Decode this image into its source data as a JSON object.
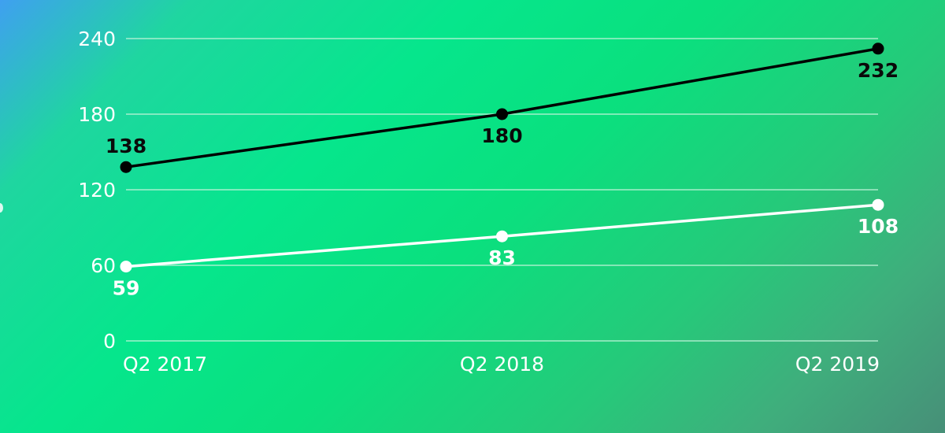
{
  "colors": {
    "background_start": "#3fa0f0",
    "background_mid": "#06e68c",
    "background_end": "#478f78",
    "gridline": "#bff3d8",
    "axis_text": "#ffffff"
  },
  "chart_data": {
    "type": "line",
    "title": "",
    "xlabel": "",
    "ylabel": "",
    "categories": [
      "Q2 2017",
      "Q2 2018",
      "Q2 2019"
    ],
    "yticks": [
      "0",
      "60",
      "120",
      "180",
      "240"
    ],
    "ylim": [
      0,
      240
    ],
    "grid": true,
    "legend": "none",
    "series": [
      {
        "color": "#000000",
        "label_color": "#0a0a0a",
        "label_position": [
          "above",
          "below",
          "below"
        ],
        "values": [
          138,
          180,
          232
        ]
      },
      {
        "color": "#ffffff",
        "label_color": "#ffffff",
        "label_position": [
          "below",
          "below",
          "below"
        ],
        "values": [
          59,
          83,
          108
        ]
      }
    ]
  }
}
